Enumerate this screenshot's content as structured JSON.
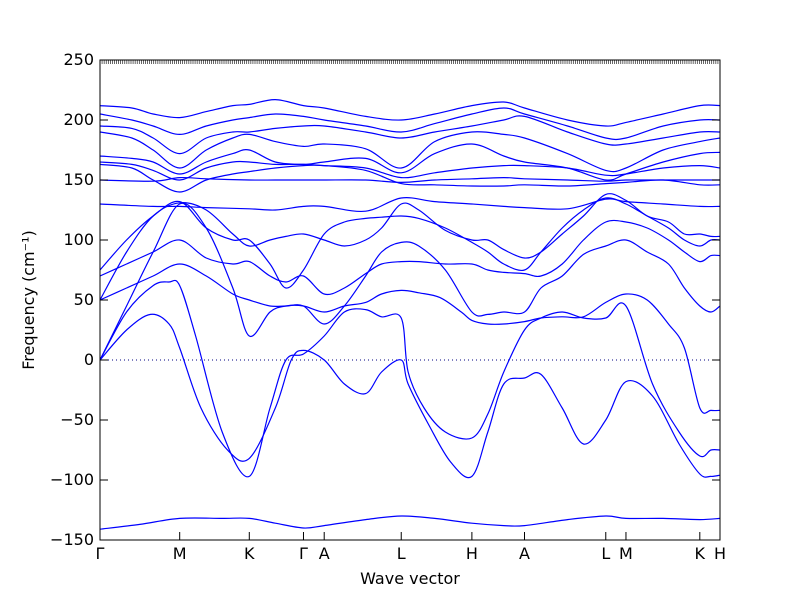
{
  "chart_data": {
    "type": "line",
    "title": "",
    "xlabel": "Wave vector",
    "ylabel": "Frequency (cm⁻¹)",
    "ylim": [
      -150,
      250
    ],
    "xlim": [
      0,
      11.67
    ],
    "y_ticks": [
      -150,
      -100,
      -50,
      0,
      50,
      100,
      150,
      200,
      250
    ],
    "y_tick_labels": [
      "−150",
      "−100",
      "−50",
      "0",
      "50",
      "100",
      "150",
      "200",
      "250"
    ],
    "x_ticks": [
      {
        "label": "Γ",
        "x": 0
      },
      {
        "label": "M",
        "x": 1.5
      },
      {
        "label": "K",
        "x": 2.81
      },
      {
        "label": "Γ",
        "x": 3.83
      },
      {
        "label": "A",
        "x": 4.22
      },
      {
        "label": "L",
        "x": 5.67
      },
      {
        "label": "H",
        "x": 7.0
      },
      {
        "label": "A",
        "x": 7.99
      },
      {
        "label": "L",
        "x": 9.52
      },
      {
        "label": "M",
        "x": 9.9
      },
      {
        "label": "K",
        "x": 11.29
      },
      {
        "label": "H",
        "x": 11.67
      }
    ],
    "zero_line": true,
    "line_color": "#0000ff",
    "series": [
      {
        "x": [
          0,
          0.75,
          1.5,
          2.3,
          2.81,
          3.3,
          3.83,
          4.22,
          5.0,
          5.67,
          6.3,
          7.0,
          7.6,
          7.99,
          8.8,
          9.52,
          9.9,
          10.6,
          11.29,
          11.67
        ],
        "y": [
          -141,
          -137,
          -132,
          -132,
          -132,
          -136,
          -140,
          -138,
          -133,
          -130,
          -132,
          -136,
          -138,
          -138,
          -133,
          -130,
          -132,
          -132,
          -133,
          -132
        ]
      },
      {
        "x": [
          0,
          0.5,
          0.95,
          1.3,
          1.5,
          1.9,
          2.4,
          2.81,
          3.3,
          3.6,
          3.83,
          4.22,
          4.6,
          5.0,
          5.3,
          5.67,
          5.8,
          6.2,
          6.6,
          7.0,
          7.3,
          7.6,
          7.99,
          8.3,
          8.7,
          9.1,
          9.52,
          9.9,
          10.4,
          10.9,
          11.29,
          11.5,
          11.67
        ],
        "y": [
          0,
          25,
          38,
          30,
          10,
          -40,
          -75,
          -82,
          -40,
          0,
          8,
          0,
          -20,
          -28,
          -10,
          0,
          -20,
          -55,
          -85,
          -97,
          -60,
          -20,
          -15,
          -12,
          -40,
          -70,
          -50,
          -18,
          -30,
          -70,
          -95,
          -97,
          -96
        ]
      },
      {
        "x": [
          0,
          0.5,
          1.0,
          1.3,
          1.5,
          1.8,
          2.3,
          2.81,
          3.2,
          3.5,
          3.83,
          4.22,
          4.6,
          5.0,
          5.3,
          5.67,
          5.8,
          6.1,
          6.5,
          7.0,
          7.3,
          7.6,
          7.99,
          8.3,
          8.7,
          9.1,
          9.52,
          9.9,
          10.4,
          10.9,
          11.29,
          11.5,
          11.67
        ],
        "y": [
          0,
          40,
          62,
          65,
          62,
          20,
          -60,
          -97,
          -40,
          0,
          5,
          20,
          40,
          42,
          36,
          35,
          -10,
          -40,
          -60,
          -65,
          -45,
          -10,
          25,
          35,
          40,
          35,
          35,
          45,
          -20,
          -60,
          -80,
          -75,
          -75
        ]
      },
      {
        "x": [
          0,
          0.5,
          1.0,
          1.5,
          2.0,
          2.5,
          2.81,
          3.2,
          3.5,
          3.83,
          4.22,
          4.6,
          5.0,
          5.3,
          5.67,
          6.0,
          6.4,
          6.8,
          7.0,
          7.3,
          7.6,
          7.99,
          8.3,
          8.7,
          9.1,
          9.52,
          9.9,
          10.3,
          10.7,
          11.0,
          11.29,
          11.5,
          11.67
        ],
        "y": [
          0,
          45,
          90,
          130,
          110,
          60,
          20,
          40,
          45,
          45,
          40,
          45,
          48,
          55,
          58,
          56,
          52,
          40,
          33,
          30,
          30,
          32,
          35,
          36,
          36,
          48,
          55,
          50,
          30,
          10,
          -40,
          -42,
          -42
        ]
      },
      {
        "x": [
          0,
          0.5,
          1.0,
          1.5,
          2.0,
          2.5,
          2.81,
          3.2,
          3.5,
          3.83,
          4.22,
          4.6,
          5.0,
          5.3,
          5.67,
          6.0,
          6.5,
          7.0,
          7.3,
          7.6,
          7.99,
          8.3,
          8.7,
          9.1,
          9.52,
          9.9,
          10.3,
          10.7,
          11.0,
          11.29,
          11.5,
          11.67
        ],
        "y": [
          50,
          60,
          70,
          80,
          70,
          55,
          50,
          45,
          45,
          45,
          30,
          45,
          70,
          90,
          98,
          95,
          75,
          40,
          38,
          40,
          40,
          60,
          70,
          88,
          95,
          100,
          90,
          80,
          60,
          45,
          40,
          45
        ]
      },
      {
        "x": [
          0,
          0.5,
          1.0,
          1.5,
          2.0,
          2.5,
          2.81,
          3.2,
          3.5,
          3.83,
          4.22,
          4.6,
          5.0,
          5.3,
          5.67,
          6.0,
          6.5,
          7.0,
          7.3,
          7.6,
          7.99,
          8.3,
          8.7,
          9.1,
          9.52,
          9.9,
          10.3,
          10.7,
          11.0,
          11.29,
          11.5,
          11.67
        ],
        "y": [
          70,
          80,
          90,
          100,
          85,
          80,
          82,
          70,
          65,
          70,
          55,
          60,
          72,
          80,
          82,
          82,
          80,
          80,
          75,
          73,
          72,
          70,
          80,
          100,
          115,
          115,
          110,
          100,
          90,
          82,
          87,
          87
        ]
      },
      {
        "x": [
          0,
          0.5,
          1.0,
          1.5,
          2.0,
          2.5,
          2.81,
          3.2,
          3.5,
          3.83,
          4.22,
          4.6,
          5.0,
          5.3,
          5.67,
          6.0,
          6.5,
          7.0,
          7.3,
          7.6,
          7.99,
          8.3,
          8.7,
          9.1,
          9.52,
          9.9,
          10.3,
          10.7,
          11.0,
          11.29,
          11.5,
          11.67
        ],
        "y": [
          75,
          100,
          120,
          132,
          110,
          100,
          100,
          80,
          60,
          75,
          105,
          115,
          118,
          119,
          120,
          118,
          110,
          98,
          90,
          80,
          75,
          90,
          110,
          125,
          135,
          130,
          120,
          110,
          100,
          95,
          100,
          100
        ]
      },
      {
        "x": [
          0,
          0.5,
          1.0,
          1.5,
          2.0,
          2.5,
          2.81,
          3.2,
          3.5,
          3.83,
          4.22,
          4.6,
          5.0,
          5.3,
          5.67,
          6.0,
          6.5,
          7.0,
          7.3,
          7.6,
          7.99,
          8.3,
          8.7,
          9.1,
          9.52,
          9.9,
          10.3,
          10.7,
          11.0,
          11.29,
          11.5,
          11.67
        ],
        "y": [
          50,
          90,
          120,
          131,
          125,
          105,
          95,
          100,
          103,
          105,
          100,
          95,
          100,
          110,
          130,
          125,
          108,
          100,
          100,
          92,
          85,
          90,
          105,
          120,
          138,
          133,
          120,
          115,
          105,
          105,
          103,
          103
        ]
      },
      {
        "x": [
          0,
          1.0,
          1.5,
          2.0,
          2.81,
          3.3,
          3.83,
          4.22,
          5.0,
          5.67,
          6.3,
          7.0,
          7.6,
          7.99,
          8.8,
          9.52,
          9.9,
          10.6,
          11.29,
          11.67
        ],
        "y": [
          130,
          128,
          128,
          127,
          126,
          125,
          128,
          128,
          124,
          135,
          132,
          130,
          128,
          127,
          126,
          134,
          132,
          130,
          128,
          128
        ]
      },
      {
        "x": [
          0,
          1.0,
          1.5,
          2.0,
          2.81,
          3.3,
          3.83,
          4.22,
          5.0,
          5.67,
          6.3,
          7.0,
          7.6,
          7.99,
          8.8,
          9.52,
          9.9,
          10.6,
          11.29,
          11.67
        ],
        "y": [
          150,
          149,
          152,
          151,
          150,
          150,
          150,
          150,
          150,
          148,
          150,
          151,
          152,
          151,
          150,
          149,
          150,
          150,
          150,
          150
        ]
      },
      {
        "x": [
          0,
          0.6,
          1.0,
          1.5,
          2.0,
          2.5,
          2.81,
          3.3,
          3.83,
          4.22,
          5.0,
          5.67,
          6.3,
          7.0,
          7.6,
          7.99,
          8.8,
          9.52,
          9.9,
          10.6,
          11.29,
          11.67
        ],
        "y": [
          163,
          160,
          150,
          140,
          150,
          155,
          157,
          160,
          162,
          162,
          158,
          147,
          146,
          145,
          145,
          146,
          145,
          147,
          148,
          150,
          146,
          146
        ]
      },
      {
        "x": [
          0,
          0.6,
          1.0,
          1.5,
          2.0,
          2.5,
          2.81,
          3.3,
          3.83,
          4.22,
          5.0,
          5.67,
          6.3,
          7.0,
          7.6,
          7.99,
          8.8,
          9.52,
          9.9,
          10.6,
          11.29,
          11.67
        ],
        "y": [
          165,
          163,
          158,
          150,
          160,
          165,
          165,
          163,
          163,
          162,
          160,
          152,
          156,
          160,
          162,
          162,
          160,
          154,
          155,
          160,
          162,
          160
        ]
      },
      {
        "x": [
          0,
          0.6,
          1.0,
          1.5,
          2.0,
          2.5,
          2.81,
          3.3,
          3.83,
          4.22,
          5.0,
          5.67,
          6.3,
          7.0,
          7.6,
          7.99,
          8.8,
          9.52,
          9.9,
          10.6,
          11.29,
          11.67
        ],
        "y": [
          170,
          168,
          165,
          155,
          165,
          172,
          175,
          165,
          163,
          165,
          168,
          156,
          172,
          180,
          170,
          165,
          160,
          150,
          155,
          165,
          172,
          173
        ]
      },
      {
        "x": [
          0,
          0.6,
          1.0,
          1.5,
          2.0,
          2.5,
          2.81,
          3.3,
          3.83,
          4.22,
          5.0,
          5.67,
          6.3,
          7.0,
          7.6,
          7.99,
          8.8,
          9.52,
          9.9,
          10.6,
          11.29,
          11.67
        ],
        "y": [
          190,
          185,
          175,
          160,
          175,
          185,
          188,
          182,
          178,
          180,
          176,
          160,
          182,
          190,
          188,
          185,
          172,
          158,
          160,
          175,
          182,
          185
        ]
      },
      {
        "x": [
          0,
          0.6,
          1.0,
          1.5,
          2.0,
          2.5,
          2.81,
          3.3,
          3.83,
          4.22,
          5.0,
          5.67,
          6.3,
          7.0,
          7.6,
          7.99,
          8.8,
          9.52,
          9.9,
          10.6,
          11.29,
          11.67
        ],
        "y": [
          195,
          193,
          185,
          172,
          185,
          190,
          190,
          193,
          195,
          195,
          190,
          185,
          190,
          195,
          200,
          203,
          190,
          180,
          180,
          185,
          190,
          190
        ]
      },
      {
        "x": [
          0,
          0.6,
          1.0,
          1.5,
          2.0,
          2.5,
          2.81,
          3.3,
          3.83,
          4.22,
          5.0,
          5.67,
          6.3,
          7.0,
          7.6,
          7.99,
          8.8,
          9.52,
          9.9,
          10.6,
          11.29,
          11.67
        ],
        "y": [
          205,
          200,
          195,
          188,
          195,
          200,
          202,
          205,
          203,
          200,
          195,
          190,
          197,
          205,
          210,
          205,
          195,
          185,
          185,
          195,
          200,
          200
        ]
      },
      {
        "x": [
          0,
          0.6,
          1.0,
          1.5,
          2.0,
          2.5,
          2.81,
          3.3,
          3.83,
          4.22,
          5.0,
          5.67,
          6.3,
          7.0,
          7.6,
          7.99,
          8.8,
          9.52,
          9.9,
          10.6,
          11.29,
          11.67
        ],
        "y": [
          212,
          210,
          205,
          202,
          207,
          212,
          213,
          217,
          212,
          210,
          203,
          200,
          205,
          212,
          215,
          210,
          200,
          195,
          198,
          205,
          212,
          212
        ]
      }
    ]
  }
}
